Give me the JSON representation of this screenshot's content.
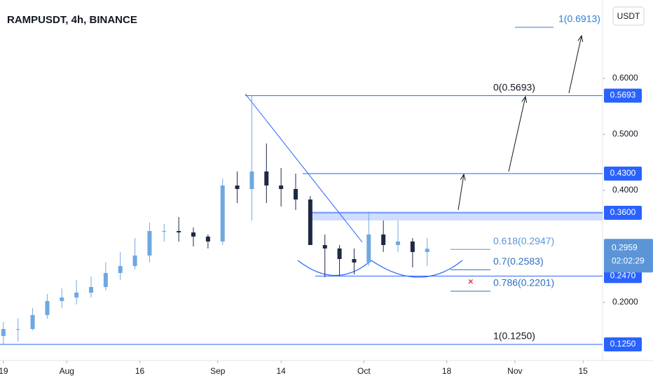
{
  "chart_data": {
    "type": "candlestick",
    "title": "RAMPUSDT, 4h, BINANCE",
    "currency": "USDT",
    "x": [
      18,
      21,
      24,
      27,
      30,
      33,
      36,
      39,
      42,
      45,
      48,
      51,
      54,
      57,
      60,
      63,
      66,
      69,
      72,
      75,
      78,
      81,
      84,
      87,
      90,
      93,
      96,
      99,
      102,
      105
    ],
    "open": [
      0.14,
      0.1525,
      0.1525,
      0.1775,
      0.2025,
      0.2088,
      0.2175,
      0.2275,
      0.2525,
      0.265,
      0.2838,
      0.3275,
      0.3275,
      0.325,
      0.3175,
      0.3088,
      0.4088,
      0.4025,
      0.4338,
      0.4088,
      0.4025,
      0.3838,
      0.3025,
      0.2963,
      0.2775,
      0.2713,
      0.3213,
      0.3025,
      0.3088,
      0.29
    ],
    "high": [
      0.165,
      0.1713,
      0.19,
      0.215,
      0.225,
      0.24,
      0.2463,
      0.2713,
      0.29,
      0.315,
      0.3425,
      0.34,
      0.3525,
      0.3338,
      0.3213,
      0.4213,
      0.4338,
      0.569,
      0.4838,
      0.44,
      0.43,
      0.39,
      0.3213,
      0.3025,
      0.2963,
      0.3625,
      0.3463,
      0.3463,
      0.315,
      0.315
    ],
    "low": [
      0.125,
      0.13,
      0.15,
      0.1713,
      0.19,
      0.1963,
      0.2088,
      0.2213,
      0.24,
      0.2588,
      0.2713,
      0.3088,
      0.3088,
      0.3,
      0.2963,
      0.3025,
      0.3775,
      0.3463,
      0.3775,
      0.3713,
      0.365,
      0.3025,
      0.245,
      0.2475,
      0.25,
      0.265,
      0.29,
      0.29,
      0.2625,
      0.265
    ],
    "close": [
      0.1525,
      0.1525,
      0.1775,
      0.2025,
      0.2088,
      0.2175,
      0.2275,
      0.2525,
      0.265,
      0.2838,
      0.3275,
      0.3275,
      0.325,
      0.3175,
      0.3088,
      0.4088,
      0.4025,
      0.4338,
      0.4088,
      0.4025,
      0.3838,
      0.3025,
      0.2963,
      0.2775,
      0.2713,
      0.3213,
      0.3025,
      0.3088,
      0.29,
      0.2959
    ],
    "up_color": "#6fa8e0",
    "down_color": "#1e2a44",
    "xlim": [
      17.3,
      141
    ],
    "xticks": [
      {
        "value": 18,
        "label": "19"
      },
      {
        "value": 31,
        "label": "Aug"
      },
      {
        "value": 46,
        "label": "16"
      },
      {
        "value": 62,
        "label": "Sep"
      },
      {
        "value": 75,
        "label": "14"
      },
      {
        "value": 92,
        "label": "Oct"
      },
      {
        "value": 109,
        "label": "18"
      },
      {
        "value": 123,
        "label": "Nov"
      },
      {
        "value": 137,
        "label": "15"
      }
    ],
    "ylim": [
      0.0963,
      0.74
    ],
    "yticks": [
      {
        "value": 0.6,
        "label": "0.6000"
      },
      {
        "value": 0.5,
        "label": "0.5000"
      },
      {
        "value": 0.4,
        "label": "0.4000"
      },
      {
        "value": 0.2,
        "label": "0.2000"
      }
    ],
    "levels": [
      0.5693,
      {
        "value": 0.43,
        "label": "0.4300"
      },
      {
        "value": 0.36,
        "label": "0.3600"
      },
      {
        "value": 0.247,
        "label": "0.2470"
      },
      {
        "value": 0.125,
        "label": "0.1250"
      }
    ],
    "zone": [
      0.3463,
      0.3625
    ],
    "last_price": 0.2959,
    "countdown": "02:02:29",
    "fib": [
      {
        "value": 0.6913,
        "label": "1(0.6913)",
        "color": "#2e7fd6"
      },
      {
        "value": 0.5693,
        "label": "0(0.5693)",
        "color": "#131722"
      },
      {
        "value": 0.2947,
        "label": "0.618(0.2947)",
        "color": "#5b95d8"
      },
      {
        "value": 0.2583,
        "label": "0.7(0.2583)",
        "color": "#2e6fc0"
      },
      {
        "value": 0.2201,
        "label": "0.786(0.2201)",
        "color": "#2e6fc0"
      },
      {
        "value": 0.125,
        "label": "1(0.1250)",
        "color": "#131722"
      }
    ],
    "line_color": "#2962ff"
  }
}
